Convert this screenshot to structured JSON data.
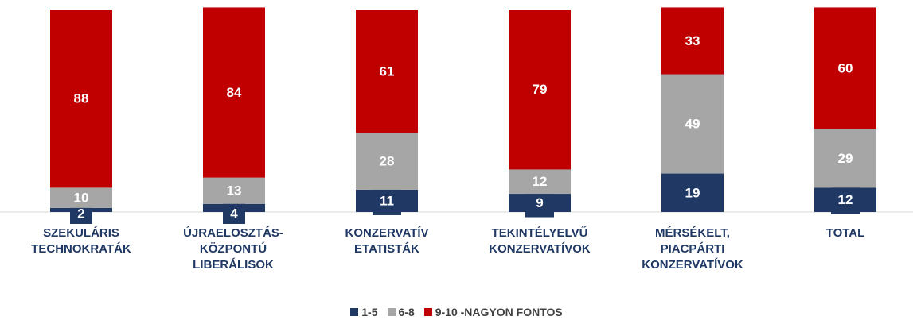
{
  "chart_data": {
    "type": "stacked_bar",
    "categories": [
      "SZEKULÁRIS TECHNOKRATÁK",
      "ÚJRAELOSZTÁS-KÖZPONTÚ LIBERÁLISOK",
      "KONZERVATÍV ETATISTÁK",
      "TEKINTÉLYELVŰ KONZERVATÍVOK",
      "MÉRSÉKELT, PIACPÁRTI KONZERVATÍVOK",
      "TOTAL"
    ],
    "series": [
      {
        "name": "1-5",
        "color": "#1f3864",
        "values": [
          2,
          4,
          11,
          9,
          19,
          12
        ]
      },
      {
        "name": "6-8",
        "color": "#a6a6a6",
        "values": [
          10,
          13,
          28,
          12,
          49,
          29
        ]
      },
      {
        "name": "9-10 -NAGYON FONTOS",
        "color": "#c00000",
        "values": [
          88,
          84,
          61,
          79,
          33,
          60
        ]
      }
    ],
    "ylim": [
      0,
      100
    ],
    "legend": "bottom"
  }
}
